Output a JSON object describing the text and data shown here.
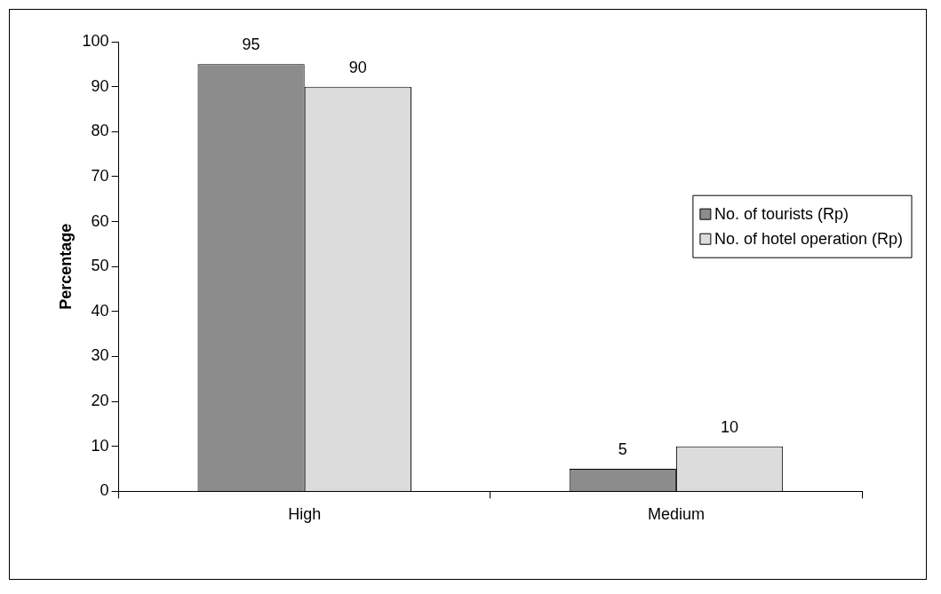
{
  "chart_data": {
    "type": "bar",
    "ylabel": "Percentage",
    "categories": [
      "High",
      "Medium"
    ],
    "series": [
      {
        "name": "No. of tourists (Rp)",
        "color": "#8c8c8c",
        "values": [
          95,
          5
        ]
      },
      {
        "name": "No. of hotel operation (Rp)",
        "color": "#dcdcdc",
        "values": [
          90,
          10
        ]
      }
    ],
    "ylim": [
      0,
      100
    ],
    "yticks": [
      0,
      10,
      20,
      30,
      40,
      50,
      60,
      70,
      80,
      90,
      100
    ],
    "grid": false,
    "legend": "right",
    "data_labels": true
  }
}
